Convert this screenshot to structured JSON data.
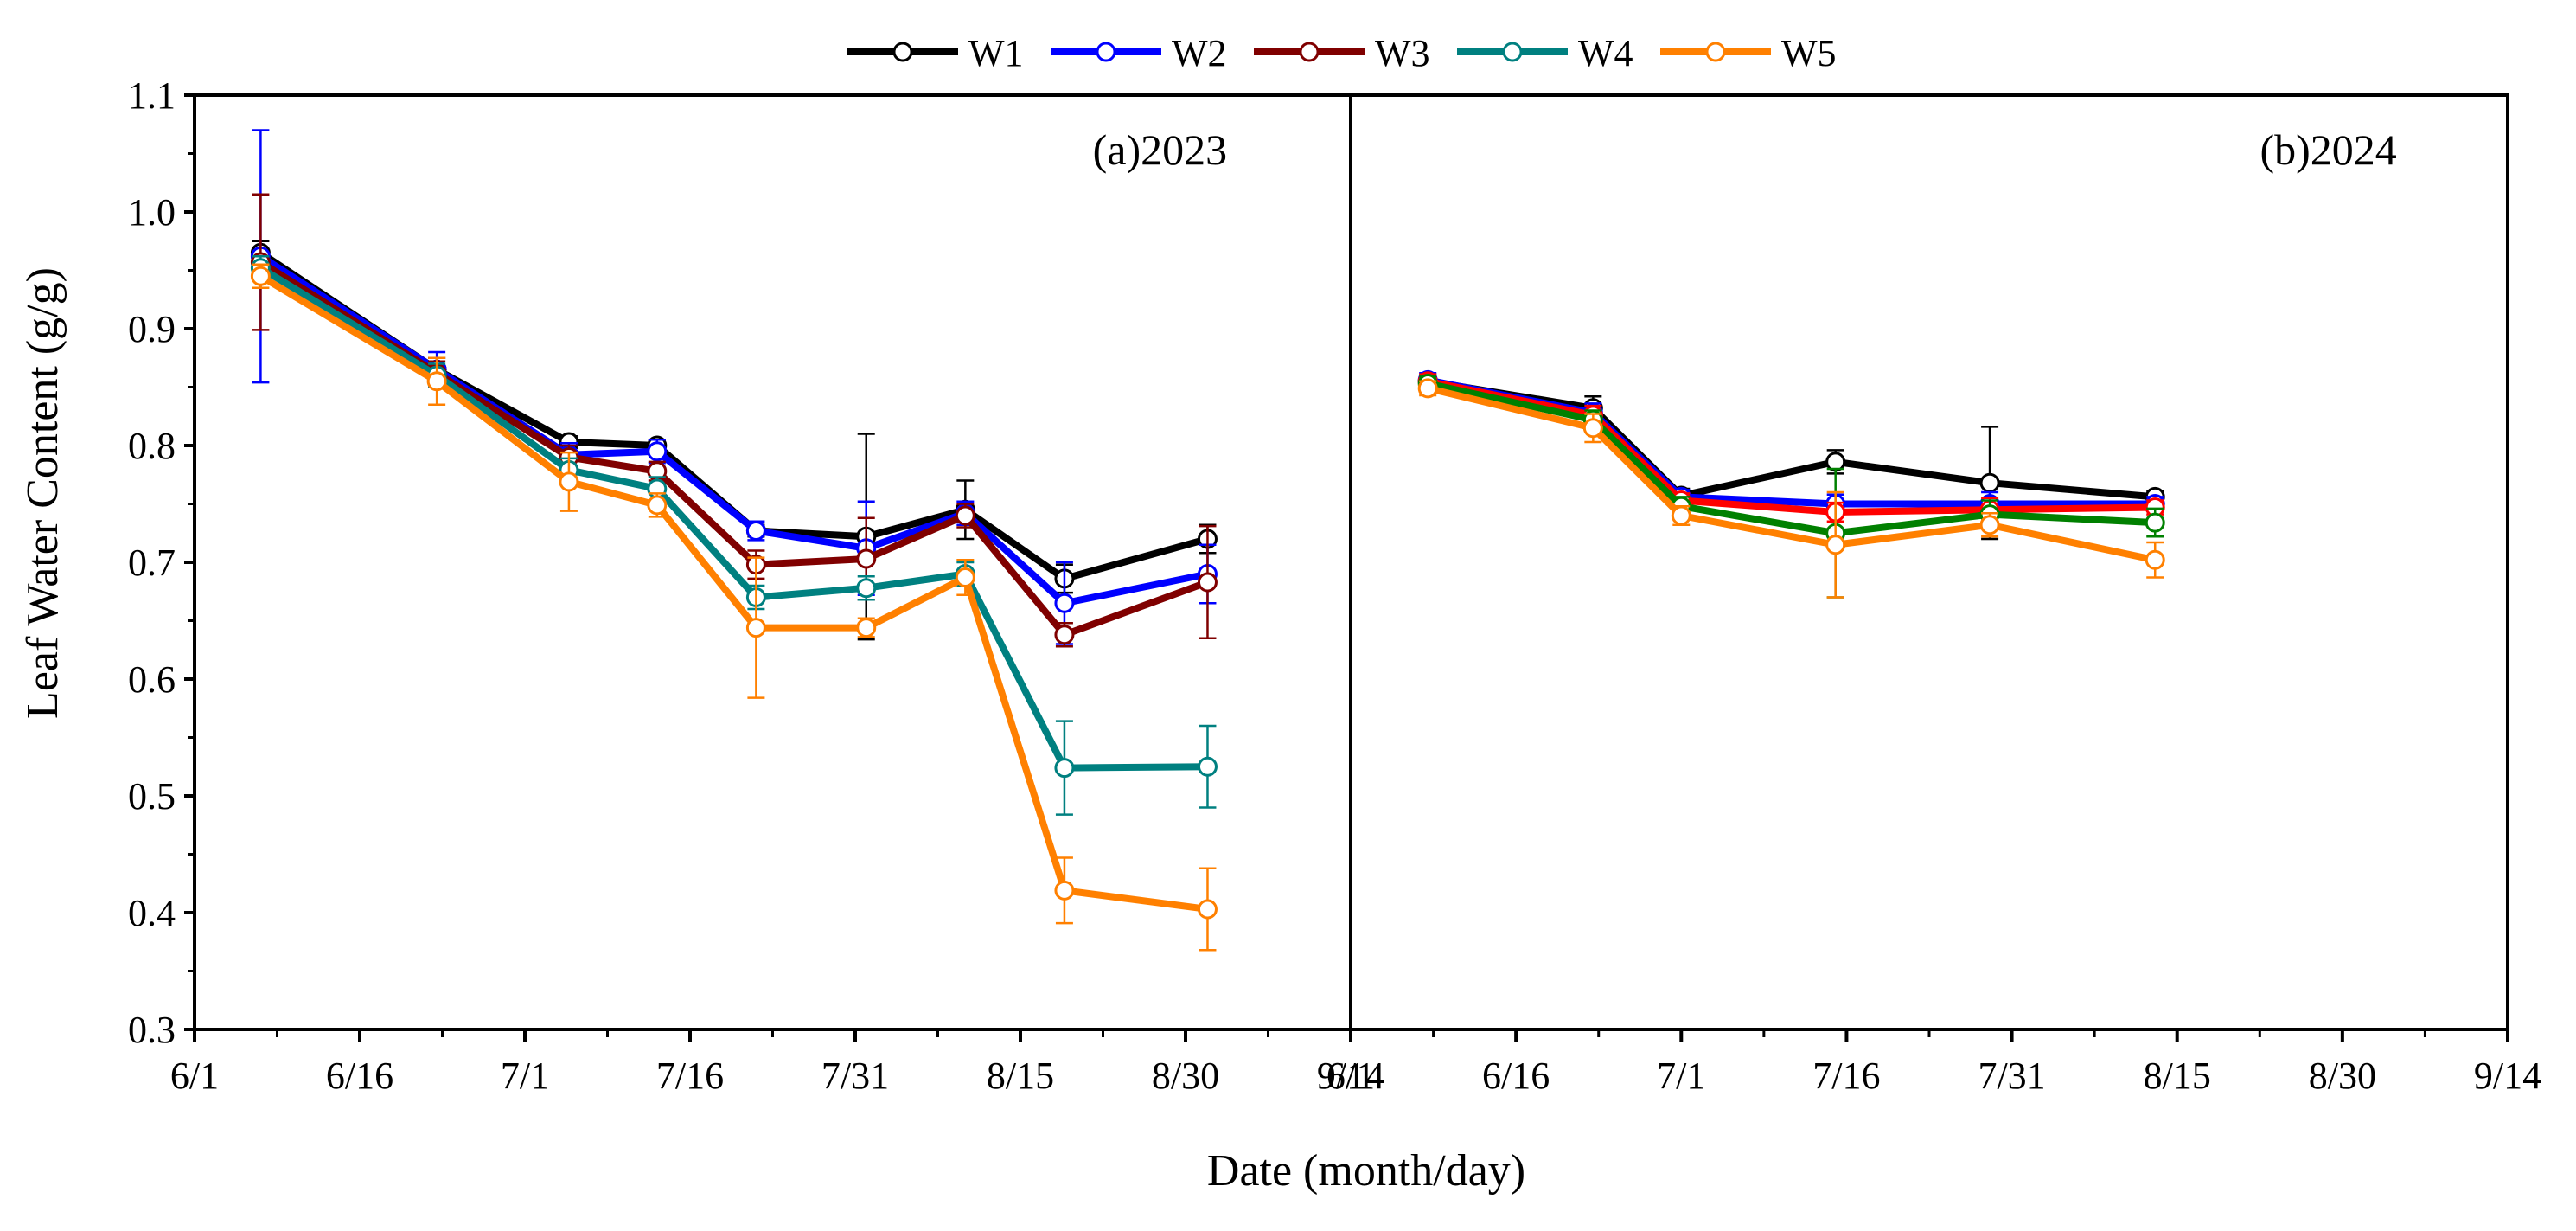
{
  "chart_data": {
    "type": "line",
    "ylabel": "Leaf Water Content (g/g)",
    "xlabel": "Date (month/day)",
    "ylim": [
      0.3,
      1.1
    ],
    "yticks": [
      0.3,
      0.4,
      0.5,
      0.6,
      0.7,
      0.8,
      0.9,
      1.0,
      1.1
    ],
    "ytick_labels": [
      "0.3",
      "0.4",
      "0.5",
      "0.6",
      "0.7",
      "0.8",
      "0.9",
      "1.0",
      "1.1"
    ],
    "legend_position": "top-center",
    "legend": [
      {
        "name": "W1",
        "color": "#000000"
      },
      {
        "name": "W2",
        "color": "#0000ff"
      },
      {
        "name": "W3",
        "color": "#800000"
      },
      {
        "name": "W4",
        "color": "#008080"
      },
      {
        "name": "W5",
        "color": "#ff8000"
      }
    ],
    "panels": [
      {
        "label": "(a)2023",
        "xlim_days": [
          0,
          105
        ],
        "xtick_days": [
          0,
          15,
          30,
          45,
          60,
          75,
          90,
          105
        ],
        "xtick_labels": [
          "6/1",
          "6/16",
          "7/1",
          "7/16",
          "7/31",
          "8/15",
          "8/30",
          "9/14"
        ],
        "x_days": [
          6,
          22,
          34,
          42,
          51,
          61,
          70,
          79,
          92
        ],
        "series": [
          {
            "name": "W1",
            "color": "#000000",
            "values": [
              0.965,
              0.865,
              0.803,
              0.8,
              0.727,
              0.722,
              0.745,
              0.686,
              0.72
            ],
            "errors": [
              0.01,
              0.01,
              0.005,
              0.005,
              0.005,
              0.088,
              0.025,
              0.012,
              0.012
            ]
          },
          {
            "name": "W2",
            "color": "#0000ff",
            "values": [
              0.962,
              0.865,
              0.792,
              0.795,
              0.727,
              0.712,
              0.742,
              0.665,
              0.69
            ],
            "errors": [
              0.108,
              0.015,
              0.01,
              0.01,
              0.008,
              0.04,
              0.01,
              0.035,
              0.025
            ]
          },
          {
            "name": "W3",
            "color": "#800000",
            "values": [
              0.957,
              0.862,
              0.79,
              0.778,
              0.698,
              0.703,
              0.74,
              0.638,
              0.683
            ],
            "errors": [
              0.058,
              0.01,
              0.01,
              0.008,
              0.012,
              0.035,
              0.01,
              0.01,
              0.048
            ]
          },
          {
            "name": "W4",
            "color": "#008080",
            "values": [
              0.952,
              0.86,
              0.779,
              0.763,
              0.67,
              0.678,
              0.69,
              0.524,
              0.525
            ],
            "errors": [
              0.01,
              0.01,
              0.01,
              0.01,
              0.01,
              0.01,
              0.01,
              0.04,
              0.035
            ]
          },
          {
            "name": "W5",
            "color": "#ff8000",
            "values": [
              0.945,
              0.855,
              0.769,
              0.749,
              0.644,
              0.644,
              0.687,
              0.419,
              0.403
            ],
            "errors": [
              0.01,
              0.02,
              0.025,
              0.01,
              0.06,
              0.008,
              0.015,
              0.028,
              0.035
            ]
          }
        ]
      },
      {
        "label": "(b)2024",
        "xlim_days": [
          0,
          105
        ],
        "xtick_days": [
          0,
          15,
          30,
          45,
          60,
          75,
          90,
          105
        ],
        "xtick_labels": [
          "6/1",
          "6/16",
          "7/1",
          "7/16",
          "7/31",
          "8/15",
          "8/30",
          "9/14"
        ],
        "x_days": [
          7,
          22,
          30,
          44,
          58,
          73
        ],
        "series": [
          {
            "name": "W1",
            "color": "#000000",
            "values": [
              0.855,
              0.832,
              0.757,
              0.786,
              0.768,
              0.756
            ],
            "errors": [
              0.006,
              0.01,
              0.006,
              0.01,
              0.048,
              0.005
            ]
          },
          {
            "name": "W2",
            "color": "#0000ff",
            "values": [
              0.856,
              0.828,
              0.756,
              0.75,
              0.75,
              0.75
            ],
            "errors": [
              0.006,
              0.008,
              0.006,
              0.008,
              0.01,
              0.006
            ]
          },
          {
            "name": "W3",
            "color": "#ff0000",
            "values": [
              0.855,
              0.826,
              0.753,
              0.743,
              0.745,
              0.747
            ],
            "errors": [
              0.006,
              0.008,
              0.006,
              0.008,
              0.01,
              0.006
            ]
          },
          {
            "name": "W4",
            "color": "#008000",
            "values": [
              0.853,
              0.822,
              0.748,
              0.725,
              0.741,
              0.734
            ],
            "errors": [
              0.006,
              0.008,
              0.008,
              0.055,
              0.012,
              0.012
            ]
          },
          {
            "name": "W5",
            "color": "#ff8000",
            "values": [
              0.849,
              0.815,
              0.74,
              0.715,
              0.732,
              0.702
            ],
            "errors": [
              0.006,
              0.012,
              0.008,
              0.045,
              0.01,
              0.015
            ]
          }
        ]
      }
    ]
  }
}
